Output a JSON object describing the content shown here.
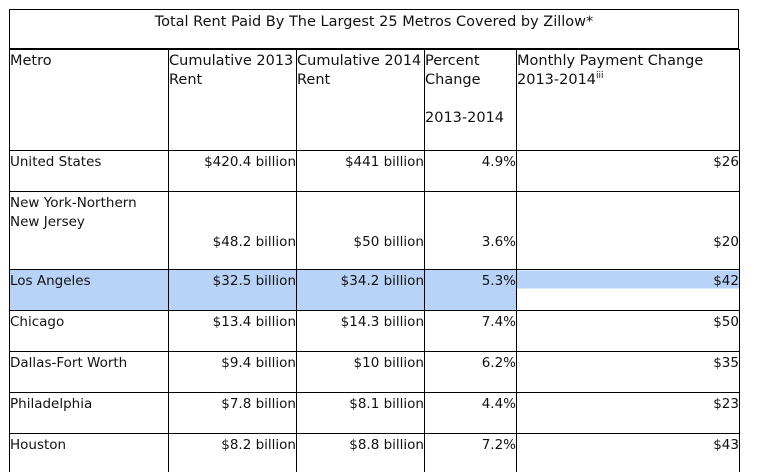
{
  "title": "Total Rent Paid By The Largest 25 Metros Covered by Zillow*",
  "headers": {
    "metro": "Metro",
    "rent2013": "Cumulative 2013 Rent",
    "rent2014": "Cumulative 2014 Rent",
    "pct_line1": "Percent Change",
    "pct_line2": "2013-2014",
    "monthly": "Monthly Payment Change 2013-2014",
    "monthly_footnote": "iii"
  },
  "rows": [
    {
      "metro": "United States",
      "rent2013": "$420.4 billion",
      "rent2014": "$441 billion",
      "pct": "4.9%",
      "monthly": "$26"
    },
    {
      "metro": "New York-Northern New Jersey",
      "rent2013": "$48.2 billion",
      "rent2014": "$50 billion",
      "pct": "3.6%",
      "monthly": "$20"
    },
    {
      "metro": "Los Angeles",
      "rent2013": "$32.5 billion",
      "rent2014": "$34.2 billion",
      "pct": "5.3%",
      "monthly": "$42"
    },
    {
      "metro": "Chicago",
      "rent2013": "$13.4 billion",
      "rent2014": "$14.3 billion",
      "pct": "7.4%",
      "monthly": "$50"
    },
    {
      "metro": "Dallas-Fort Worth",
      "rent2013": "$9.4 billion",
      "rent2014": "$10 billion",
      "pct": "6.2%",
      "monthly": "$35"
    },
    {
      "metro": "Philadelphia",
      "rent2013": "$7.8 billion",
      "rent2014": "$8.1 billion",
      "pct": "4.4%",
      "monthly": "$23"
    },
    {
      "metro": "Houston",
      "rent2013": "$8.2 billion",
      "rent2014": "$8.8 billion",
      "pct": "7.2%",
      "monthly": "$43"
    }
  ],
  "highlight_color": "#b8d3f7"
}
